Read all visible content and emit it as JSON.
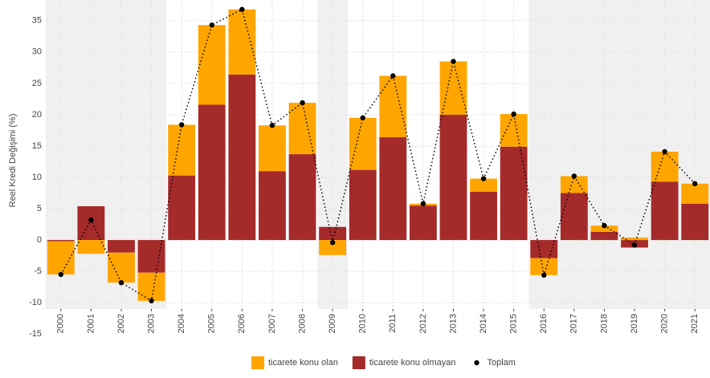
{
  "chart_data": {
    "type": "bar",
    "stacked": true,
    "y_label": "Reel Kredi Değişimi (%)",
    "categories": [
      "2000",
      "2001",
      "2002",
      "2003",
      "2004",
      "2005",
      "2006",
      "2007",
      "2008",
      "2009",
      "2010",
      "2011",
      "2012",
      "2013",
      "2014",
      "2015",
      "2016",
      "2017",
      "2018",
      "2019",
      "2020",
      "2021"
    ],
    "shaded": [
      [
        "2000",
        "2003"
      ],
      [
        "2009",
        "2009"
      ],
      [
        "2016",
        "2021"
      ]
    ],
    "series": [
      {
        "name": "ticarete konu olan",
        "type": "bar",
        "color": "#FFA500",
        "values": [
          -5.3,
          -2.2,
          -4.8,
          -4.5,
          8.1,
          12.7,
          10.4,
          7.3,
          8.2,
          -2.4,
          8.3,
          9.8,
          0.3,
          8.5,
          2.1,
          5.2,
          -2.7,
          2.7,
          1.0,
          0.4,
          4.8,
          3.2
        ]
      },
      {
        "name": "ticarete konu olmayan",
        "type": "bar",
        "color": "#A52A2A",
        "values": [
          -0.2,
          5.4,
          -2.0,
          -5.2,
          10.3,
          21.6,
          26.4,
          11.0,
          13.7,
          2.1,
          11.2,
          16.4,
          5.5,
          20.0,
          7.7,
          14.9,
          -2.9,
          7.5,
          1.3,
          -1.2,
          9.3,
          5.8
        ]
      },
      {
        "name": "Toplam",
        "type": "line",
        "color": "#000000",
        "values": [
          -5.5,
          3.2,
          -6.8,
          -9.7,
          18.4,
          34.3,
          36.8,
          18.3,
          21.9,
          -0.4,
          19.5,
          26.2,
          5.8,
          28.5,
          9.8,
          20.1,
          -5.6,
          10.2,
          2.3,
          -0.8,
          14.1,
          9.0
        ]
      }
    ],
    "ylim": [
      -11,
      38.3
    ],
    "yticks": [
      -15,
      -10,
      -5,
      0,
      5,
      10,
      15,
      20,
      25,
      30,
      35
    ],
    "grid": true,
    "legend": "bottom"
  }
}
